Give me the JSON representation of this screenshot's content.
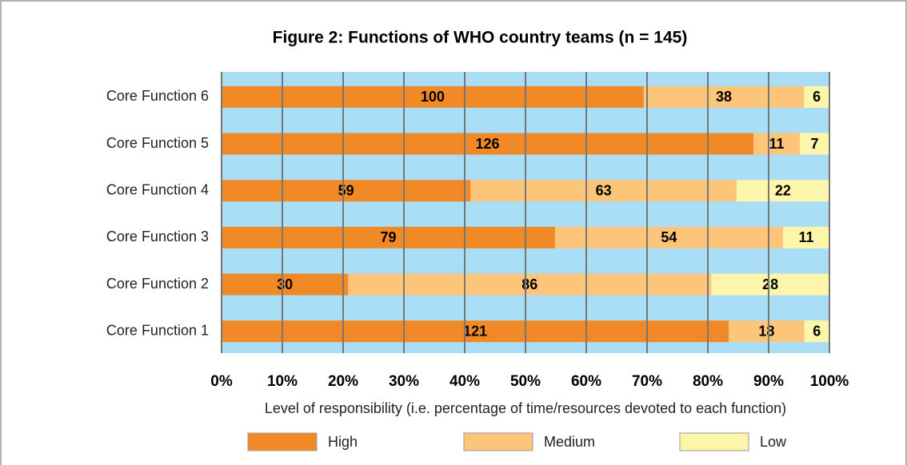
{
  "chart_data": {
    "type": "stacked-barh",
    "stack": "percent",
    "title": "Figure 2: Functions of WHO country teams (n = 145)",
    "x_label": "Level of responsibility (i.e. percentage of time/resources devoted to each function)",
    "categories": [
      "Core Function 6",
      "Core Function 5",
      "Core Function 4",
      "Core Function 3",
      "Core Function 2",
      "Core Function 1"
    ],
    "series": [
      {
        "name": "High",
        "color": "#f18a26",
        "values": [
          100,
          126,
          59,
          79,
          30,
          121
        ]
      },
      {
        "name": "Medium",
        "color": "#fcc57a",
        "values": [
          38,
          11,
          63,
          54,
          86,
          18
        ]
      },
      {
        "name": "Low",
        "color": "#fdf6aa",
        "values": [
          6,
          7,
          22,
          11,
          28,
          6
        ]
      }
    ],
    "xlim": [
      0,
      100
    ],
    "xticks": [
      {
        "value": 0,
        "label": "0%"
      },
      {
        "value": 10,
        "label": "10%"
      },
      {
        "value": 20,
        "label": "20%"
      },
      {
        "value": 30,
        "label": "30%"
      },
      {
        "value": 40,
        "label": "40%"
      },
      {
        "value": 50,
        "label": "50%"
      },
      {
        "value": 60,
        "label": "60%"
      },
      {
        "value": 70,
        "label": "70%"
      },
      {
        "value": 80,
        "label": "80%"
      },
      {
        "value": 90,
        "label": "90%"
      },
      {
        "value": 100,
        "label": "100%"
      }
    ],
    "grid": true,
    "background": "#a9def6"
  }
}
